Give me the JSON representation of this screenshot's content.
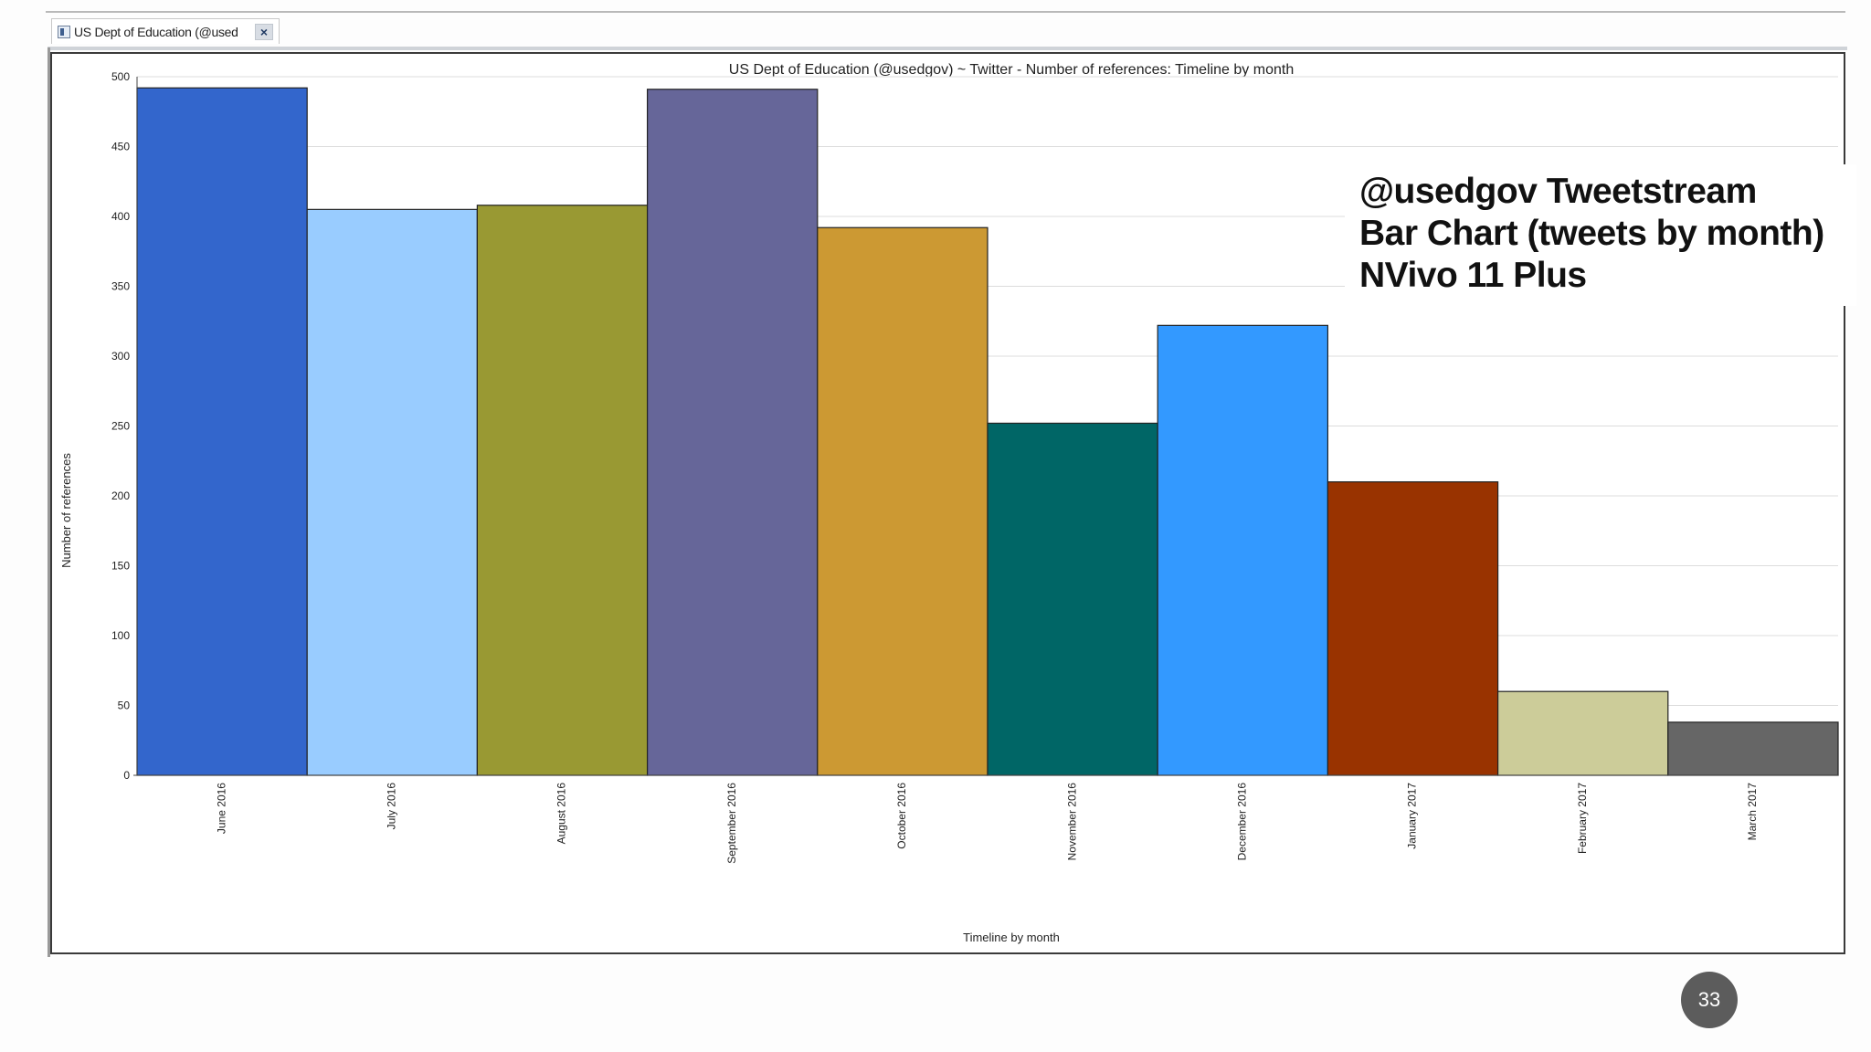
{
  "tab": {
    "label": "US Dept of Education (@used",
    "close_label": "×"
  },
  "overlay": {
    "line1": "@usedgov Tweetstream",
    "line2": "Bar Chart (tweets by month)",
    "line3": "NVivo 11 Plus"
  },
  "page_number": "33",
  "chart_data": {
    "type": "bar",
    "title": "US Dept of Education (@usedgov) ~ Twitter - Number of references: Timeline by month",
    "xlabel": "Timeline by month",
    "ylabel": "Number of references",
    "ylim": [
      0,
      500
    ],
    "yticks": [
      0,
      50,
      100,
      150,
      200,
      250,
      300,
      350,
      400,
      450,
      500
    ],
    "grid": true,
    "categories": [
      "June 2016",
      "July 2016",
      "August 2016",
      "September 2016",
      "October 2016",
      "November 2016",
      "December 2016",
      "January 2017",
      "February 2017",
      "March 2017"
    ],
    "values": [
      492,
      405,
      408,
      491,
      392,
      252,
      322,
      210,
      60,
      38
    ],
    "colors": [
      "#3366cc",
      "#99ccff",
      "#999933",
      "#666699",
      "#cc9933",
      "#006666",
      "#3399ff",
      "#993300",
      "#cccc99",
      "#666666"
    ]
  }
}
